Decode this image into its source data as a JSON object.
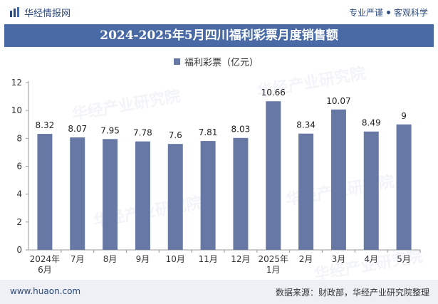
{
  "header": {
    "brand": "华经情报网",
    "tag1": "专业严谨",
    "tag2": "客观科学"
  },
  "title": "2024-2025年5月四川福利彩票月度销售额",
  "legend": "福利彩票（亿元）",
  "footer": {
    "site": "www.huaon.com",
    "source": "数据来源：财政部，华经产业研究院整理"
  },
  "watermark": "华经产业研究院",
  "colors": {
    "bar": "#6778a5",
    "title_bg": "#4a6aa5",
    "brand": "#2b4a80"
  },
  "chart_data": {
    "type": "bar",
    "title": "2024-2025年5月四川福利彩票月度销售额",
    "categories": [
      "2024年\n6月",
      "7月",
      "8月",
      "9月",
      "10月",
      "11月",
      "12月",
      "2025年\n1月",
      "2月",
      "3月",
      "4月",
      "5月"
    ],
    "series": [
      {
        "name": "福利彩票（亿元）",
        "values": [
          8.32,
          8.07,
          7.95,
          7.78,
          7.6,
          7.81,
          8.03,
          10.66,
          8.34,
          10.07,
          8.49,
          9
        ]
      }
    ],
    "value_labels": [
      "8.32",
      "8.07",
      "7.95",
      "7.78",
      "7.6",
      "7.81",
      "8.03",
      "10.66",
      "8.34",
      "10.07",
      "8.49",
      "9"
    ],
    "ylim": [
      0,
      12
    ],
    "yticks": [
      0,
      2,
      4,
      6,
      8,
      10,
      12
    ],
    "grid": false,
    "legend_position": "top-center"
  }
}
